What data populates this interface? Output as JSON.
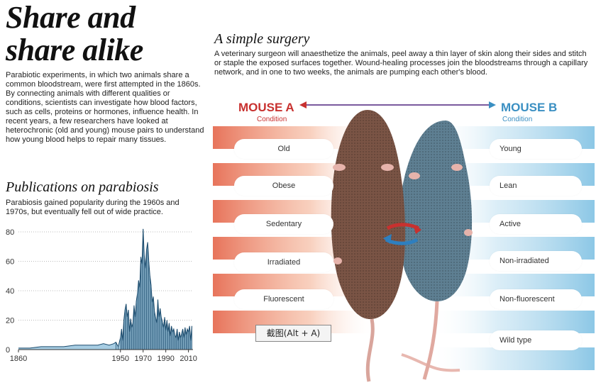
{
  "title": "Share and share alike",
  "title_line1": "Share and",
  "title_line2": "share alike",
  "intro": "Parabiotic experiments, in which two animals share a common bloodstream, were first attempted in the 1860s. By connecting animals with different qualities or conditions, scientists can investigate how blood factors, such as cells, proteins or hormones, influence health. In recent years, a few researchers have looked at heterochronic (old and young) mouse pairs to understand how young blood helps to repair many tissues.",
  "publications": {
    "heading": "Publications on parabiosis",
    "subtext": "Parabiosis gained popularity during the 1960s and 1970s, but eventually fell out of wide practice."
  },
  "surgery": {
    "heading": "A simple surgery",
    "text": "A veterinary surgeon will anaesthetize the animals, peel away a thin layer of skin along their sides and stitch or staple the exposed surfaces together. Wound-healing processes join the bloodstreams through a capillary network, and in one to two weeks, the animals are pumping each other's blood."
  },
  "mouse_a": {
    "label": "MOUSE A",
    "condition_label": "Condition",
    "conditions": [
      "Old",
      "Obese",
      "Sedentary",
      "Irradiated",
      "Fluorescent"
    ]
  },
  "mouse_b": {
    "label": "MOUSE B",
    "condition_label": "Condition",
    "conditions": [
      "Young",
      "Lean",
      "Active",
      "Non-irradiated",
      "Non-fluorescent",
      "Wild type"
    ]
  },
  "overlay_button": "截图(Alt + A)",
  "colors": {
    "mouse_a": "#c8312f",
    "mouse_b": "#3a8fc2",
    "bar_fill": "#a7cde3",
    "bar_stroke": "#1c4c6e"
  },
  "chart_data": {
    "type": "area",
    "title": "Publications on parabiosis",
    "xlabel": "",
    "ylabel": "",
    "xlim": [
      1860,
      2014
    ],
    "ylim": [
      0,
      80
    ],
    "x_ticks": [
      1860,
      1950,
      1970,
      1990,
      2010
    ],
    "y_ticks": [
      0,
      20,
      40,
      60,
      80
    ],
    "grid": true,
    "series": [
      {
        "x": [
          1860,
          1870,
          1880,
          1890,
          1900,
          1910,
          1920,
          1930,
          1935,
          1940,
          1944,
          1946,
          1948,
          1950,
          1951,
          1952,
          1953,
          1954,
          1955,
          1956,
          1957,
          1958,
          1959,
          1960,
          1961,
          1962,
          1963,
          1964,
          1965,
          1966,
          1967,
          1968,
          1969,
          1970,
          1971,
          1972,
          1973,
          1974,
          1975,
          1976,
          1977,
          1978,
          1979,
          1980,
          1981,
          1982,
          1983,
          1984,
          1985,
          1986,
          1987,
          1988,
          1989,
          1990,
          1991,
          1992,
          1993,
          1994,
          1995,
          1996,
          1997,
          1998,
          1999,
          2000,
          2001,
          2002,
          2003,
          2004,
          2005,
          2006,
          2007,
          2008,
          2009,
          2010,
          2011,
          2012,
          2013
        ],
        "values": [
          1,
          1,
          2,
          2,
          2,
          3,
          3,
          3,
          4,
          3,
          4,
          5,
          2,
          8,
          14,
          6,
          20,
          27,
          31,
          22,
          27,
          12,
          21,
          15,
          18,
          30,
          22,
          33,
          38,
          47,
          42,
          63,
          58,
          82,
          64,
          55,
          68,
          73,
          60,
          50,
          44,
          32,
          36,
          26,
          22,
          18,
          34,
          22,
          28,
          22,
          19,
          15,
          22,
          13,
          20,
          12,
          18,
          9,
          16,
          12,
          14,
          10,
          8,
          14,
          6,
          12,
          8,
          11,
          14,
          8,
          15,
          10,
          14,
          12,
          16,
          6,
          16
        ]
      }
    ]
  }
}
